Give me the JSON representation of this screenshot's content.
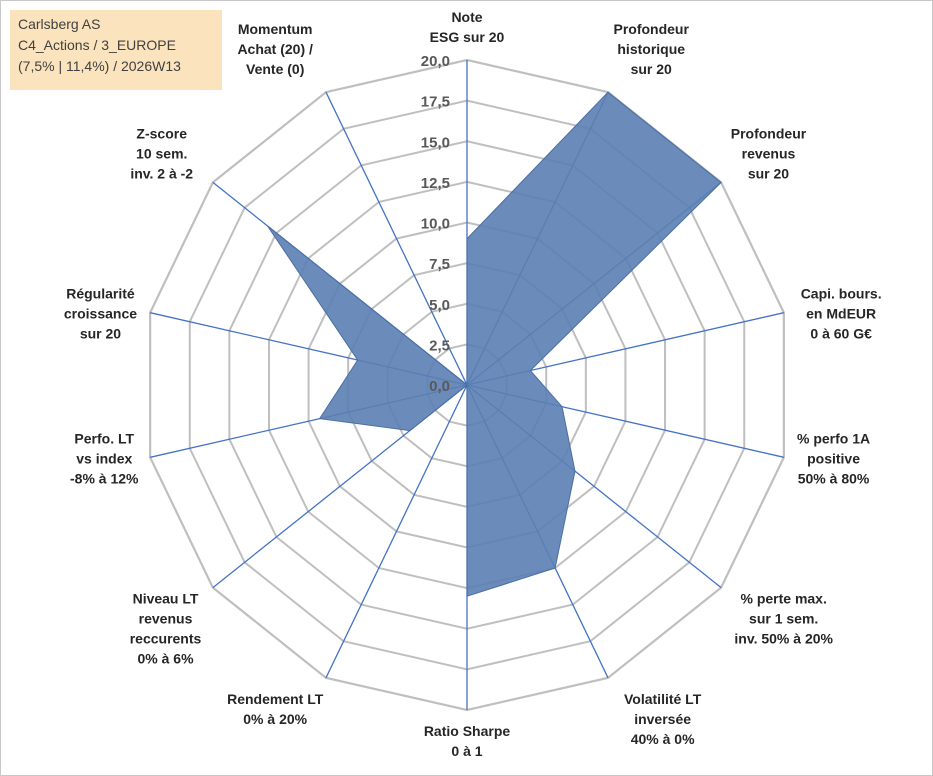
{
  "info_box": {
    "line1": "Carlsberg AS",
    "line2": "C4_Actions / 3_EUROPE",
    "line3": "(7,5% | 11,4%) / 2026W13"
  },
  "colors": {
    "grid": "#bfbfbf",
    "spoke": "#4472c4",
    "fill": "#5b80b3",
    "stroke": "#4a6fa5",
    "info_bg": "#fbe4bd"
  },
  "chart_data": {
    "type": "radar",
    "title": "",
    "rlim": [
      0,
      20
    ],
    "ticks": [
      "0,0",
      "2,5",
      "5,0",
      "7,5",
      "10,0",
      "12,5",
      "15,0",
      "17,5",
      "20,0"
    ],
    "tick_values": [
      0,
      2.5,
      5,
      7.5,
      10,
      12.5,
      15,
      17.5,
      20
    ],
    "grid": true,
    "categories": [
      {
        "name": "note-esg",
        "lines": [
          "Note",
          "ESG sur 20"
        ],
        "value": 9
      },
      {
        "name": "profondeur-historique",
        "lines": [
          "Profondeur",
          "historique",
          "sur 20"
        ],
        "value": 20
      },
      {
        "name": "profondeur-revenus",
        "lines": [
          "Profondeur",
          "revenus",
          "sur 20"
        ],
        "value": 20
      },
      {
        "name": "capi-bours",
        "lines": [
          "Capi. bours.",
          "en MdEUR",
          "0 à 60 G€"
        ],
        "value": 4
      },
      {
        "name": "perfo-1a-positive",
        "lines": [
          "% perfo 1A",
          "positive",
          "50% à 80%"
        ],
        "value": 6
      },
      {
        "name": "perte-max",
        "lines": [
          "% perte max.",
          "sur 1 sem.",
          "inv. 50% à 20%"
        ],
        "value": 8.5
      },
      {
        "name": "volatilite-lt",
        "lines": [
          "Volatilité LT",
          "inversée",
          "40% à 0%"
        ],
        "value": 12.5
      },
      {
        "name": "ratio-sharpe",
        "lines": [
          "Ratio Sharpe",
          "0 à 1"
        ],
        "value": 13
      },
      {
        "name": "rendement-lt",
        "lines": [
          "Rendement LT",
          "0% à 20%"
        ],
        "value": 0
      },
      {
        "name": "niveau-lt-revenus",
        "lines": [
          "Niveau LT",
          "revenus",
          "reccurents",
          "0% à 6%"
        ],
        "value": 4.5
      },
      {
        "name": "perfo-lt-vs-index",
        "lines": [
          "Perfo. LT",
          "vs index",
          "-8% à 12%"
        ],
        "value": 9.3
      },
      {
        "name": "regularite-croissance",
        "lines": [
          "Régularité",
          "croissance",
          "sur 20"
        ],
        "value": 6.9
      },
      {
        "name": "z-score",
        "lines": [
          "Z-score",
          "10 sem.",
          "inv. 2 à -2"
        ],
        "value": 15.7
      },
      {
        "name": "momentum",
        "lines": [
          "Momentum",
          "Achat (20) /",
          "Vente (0)"
        ],
        "value": 0
      }
    ],
    "series": [
      {
        "name": "Carlsberg AS",
        "values": [
          9,
          20,
          20,
          4,
          6,
          8.5,
          12.5,
          13,
          0,
          4.5,
          9.3,
          6.9,
          15.7,
          0
        ]
      }
    ]
  }
}
